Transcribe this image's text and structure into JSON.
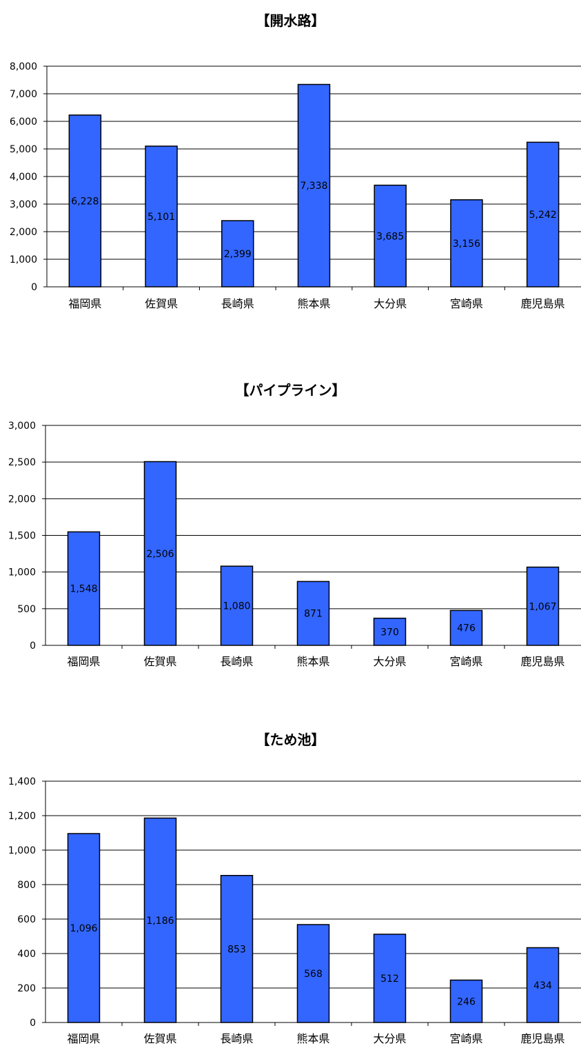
{
  "chart_data": [
    {
      "type": "bar",
      "title": "【開水路】",
      "categories": [
        "福岡県",
        "佐賀県",
        "長崎県",
        "熊本県",
        "大分県",
        "宮崎県",
        "鹿児島県"
      ],
      "values": [
        6228,
        5101,
        2399,
        7338,
        3685,
        3156,
        5242
      ],
      "value_labels": [
        "6,228",
        "5,101",
        "2,399",
        "7,338",
        "3,685",
        "3,156",
        "5,242"
      ],
      "ylim": [
        0,
        8000
      ],
      "yticks": [
        0,
        1000,
        2000,
        3000,
        4000,
        5000,
        6000,
        7000,
        8000
      ],
      "ytick_labels": [
        "0",
        "1,000",
        "2,000",
        "3,000",
        "4,000",
        "5,000",
        "6,000",
        "7,000",
        "8,000"
      ],
      "grid": true,
      "bar_color": "#3366ff"
    },
    {
      "type": "bar",
      "title": "【パイプライン】",
      "categories": [
        "福岡県",
        "佐賀県",
        "長崎県",
        "熊本県",
        "大分県",
        "宮崎県",
        "鹿児島県"
      ],
      "values": [
        1548,
        2506,
        1080,
        871,
        370,
        476,
        1067
      ],
      "value_labels": [
        "1,548",
        "2,506",
        "1,080",
        "871",
        "370",
        "476",
        "1,067"
      ],
      "ylim": [
        0,
        3000
      ],
      "yticks": [
        0,
        500,
        1000,
        1500,
        2000,
        2500,
        3000
      ],
      "ytick_labels": [
        "0",
        "500",
        "1,000",
        "1,500",
        "2,000",
        "2,500",
        "3,000"
      ],
      "grid": true,
      "bar_color": "#3366ff"
    },
    {
      "type": "bar",
      "title": "【ため池】",
      "categories": [
        "福岡県",
        "佐賀県",
        "長崎県",
        "熊本県",
        "大分県",
        "宮崎県",
        "鹿児島県"
      ],
      "values": [
        1096,
        1186,
        853,
        568,
        512,
        246,
        434
      ],
      "value_labels": [
        "1,096",
        "1,186",
        "853",
        "568",
        "512",
        "246",
        "434"
      ],
      "ylim": [
        0,
        1400
      ],
      "yticks": [
        0,
        200,
        400,
        600,
        800,
        1000,
        1200,
        1400
      ],
      "ytick_labels": [
        "0",
        "200",
        "400",
        "600",
        "800",
        "1,000",
        "1,200",
        "1,400"
      ],
      "grid": true,
      "bar_color": "#3366ff"
    }
  ]
}
